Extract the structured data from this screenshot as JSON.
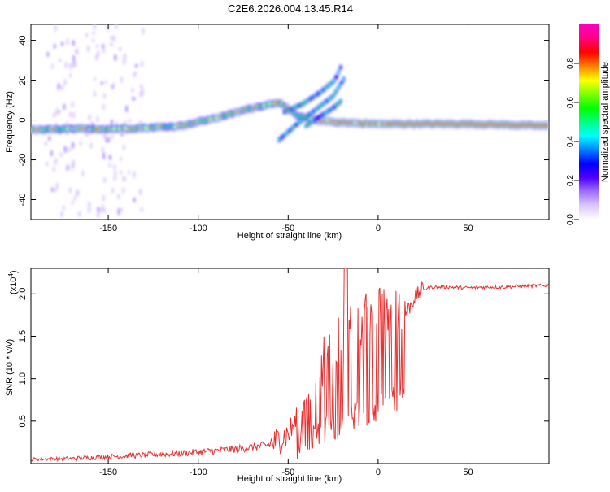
{
  "title": "C2E6.2026.004.13.45.R14",
  "chart_data": [
    {
      "type": "heatmap",
      "title": "C2E6.2026.004.13.45.R14",
      "xlabel": "Height of straight line (km)",
      "ylabel": "Frequency (Hz)",
      "xlim": [
        -193,
        95
      ],
      "ylim": [
        -50,
        48
      ],
      "x_ticks": [
        -150,
        -100,
        -50,
        0,
        50
      ],
      "y_ticks": [
        40,
        20,
        0,
        -20,
        -40
      ],
      "colorbar": {
        "label": "Normalized spectral amplitude",
        "range": [
          0,
          1
        ],
        "ticks": [
          0.0,
          0.2,
          0.4,
          0.6,
          0.8
        ],
        "colors": [
          "#ffffff",
          "#dcc8ff",
          "#a070ff",
          "#5000ff",
          "#0000ff",
          "#0080ff",
          "#00ffff",
          "#00ff80",
          "#00ff00",
          "#80ff00",
          "#ffff00",
          "#ff8000",
          "#ff0000",
          "#ff0080",
          "#ff00c0"
        ]
      },
      "ridge": {
        "description_points_x": [
          -190,
          -170,
          -150,
          -130,
          -110,
          -90,
          -70,
          -55,
          -45,
          -35,
          -25,
          -15,
          0,
          20,
          50,
          75,
          95
        ],
        "description_points_freq": [
          -5,
          -4.5,
          -4.5,
          -4,
          -3,
          1,
          6,
          9,
          2,
          0,
          -1,
          -1.5,
          -2,
          -2,
          -2,
          -2.5,
          -3
        ]
      }
    },
    {
      "type": "line",
      "xlabel": "Height of straight line (km)",
      "ylabel": "SNR (10 * v/v)",
      "scale_label": "(x10",
      "scale_exp": "4",
      "scale_close": ")",
      "xlim": [
        -193,
        95
      ],
      "ylim": [
        0,
        2.3
      ],
      "x_ticks": [
        -150,
        -100,
        -50,
        0,
        50
      ],
      "y_ticks": [
        0.5,
        1.0,
        1.5,
        2.0
      ],
      "series": [
        {
          "name": "SNR",
          "color": "#e83030",
          "profile_x": [
            -193,
            -170,
            -150,
            -130,
            -110,
            -90,
            -75,
            -60,
            -50,
            -45,
            -40,
            -35,
            -30,
            -25,
            -20,
            -15,
            -10,
            -5,
            0,
            5,
            10,
            15,
            20,
            25,
            30,
            40,
            50,
            60,
            70,
            80,
            95
          ],
          "profile_y": [
            0.05,
            0.06,
            0.08,
            0.1,
            0.12,
            0.15,
            0.18,
            0.22,
            0.35,
            0.5,
            0.7,
            0.9,
            1.05,
            1.2,
            1.3,
            1.4,
            1.5,
            1.55,
            1.6,
            1.62,
            1.6,
            1.75,
            1.95,
            2.05,
            2.08,
            2.08,
            2.07,
            2.08,
            2.08,
            2.09,
            2.1
          ]
        }
      ]
    }
  ]
}
